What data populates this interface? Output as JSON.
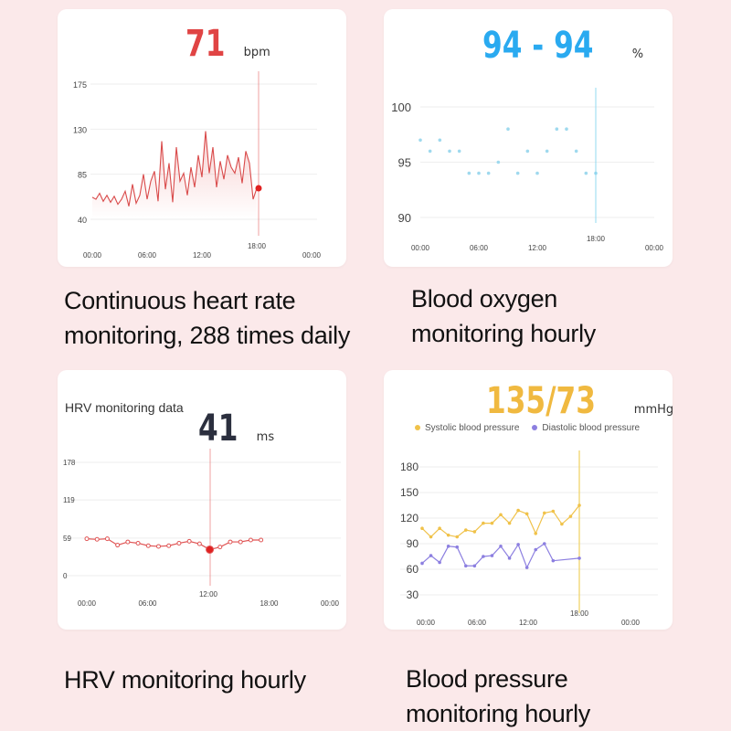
{
  "panels": {
    "heart_rate": {
      "reading_value": "71",
      "reading_unit": "bpm",
      "caption_line1": "Continuous heart rate",
      "caption_line2": "monitoring, 288 times daily",
      "colors": {
        "accent": "#e04444",
        "line": "#d94a4a"
      }
    },
    "blood_oxygen": {
      "reading_value": "94 - 94",
      "reading_unit": "%",
      "caption_line1": "Blood oxygen",
      "caption_line2": "monitoring hourly",
      "colors": {
        "accent": "#2aaaf0",
        "dots": "#9fd9ee"
      }
    },
    "hrv": {
      "chart_title": "HRV monitoring data",
      "reading_value": "41",
      "reading_unit": "ms",
      "caption_line1": "HRV monitoring hourly",
      "colors": {
        "accent": "#2b2f3e",
        "line": "#e05555"
      }
    },
    "blood_pressure": {
      "reading_value": "135/73",
      "reading_unit": "mmHg",
      "legend_systolic": "Systolic blood pressure",
      "legend_diastolic": "Diastolic blood pressure",
      "caption_line1": "Blood pressure",
      "caption_line2": "monitoring hourly",
      "colors": {
        "accent": "#f0b940",
        "systolic": "#f0c24a",
        "diastolic": "#8c7fe0"
      }
    }
  },
  "chart_data": [
    {
      "type": "line",
      "y_ticks": [
        "40",
        "85",
        "130",
        "175"
      ],
      "x_ticks": [
        "00:00",
        "06:00",
        "12:00",
        "18:00",
        "00:00"
      ],
      "ylim": [
        40,
        175
      ],
      "grid": true,
      "cursor_x": "18:00",
      "series": [
        {
          "x": [
            0.0,
            0.4,
            0.8,
            1.2,
            1.6,
            2.0,
            2.4,
            2.8,
            3.2,
            3.6,
            4.0,
            4.4,
            4.8,
            5.2,
            5.6,
            6.0,
            6.4,
            6.8,
            7.2,
            7.6,
            8.0,
            8.4,
            8.8,
            9.2,
            9.6,
            10.0,
            10.4,
            10.8,
            11.2,
            11.6,
            12.0,
            12.4,
            12.8,
            13.2,
            13.6,
            14.0,
            14.4,
            14.8,
            15.2,
            15.6,
            16.0,
            16.4,
            16.8,
            17.2,
            17.6,
            18.0
          ],
          "values": [
            62,
            60,
            66,
            58,
            64,
            57,
            63,
            55,
            60,
            68,
            53,
            75,
            56,
            64,
            85,
            60,
            78,
            88,
            58,
            118,
            70,
            96,
            57,
            112,
            78,
            86,
            64,
            92,
            72,
            104,
            82,
            128,
            86,
            112,
            72,
            98,
            80,
            104,
            92,
            86,
            102,
            76,
            108,
            96,
            60,
            71
          ]
        }
      ]
    },
    {
      "type": "scatter",
      "y_ticks": [
        "90",
        "95",
        "100"
      ],
      "x_ticks": [
        "00:00",
        "06:00",
        "12:00",
        "18:00",
        "00:00"
      ],
      "ylim": [
        90,
        100
      ],
      "grid": true,
      "cursor_x": "18:00",
      "series": [
        {
          "x": [
            0,
            1,
            2,
            3,
            4,
            5,
            6,
            7,
            8,
            9,
            10,
            11,
            12,
            13,
            14,
            15,
            16,
            17,
            18
          ],
          "values": [
            97,
            96,
            97,
            96,
            96,
            94,
            94,
            94,
            95,
            98,
            94,
            96,
            94,
            96,
            98,
            98,
            96,
            94,
            94
          ]
        }
      ]
    },
    {
      "type": "line",
      "y_ticks": [
        "0",
        "59",
        "119",
        "178"
      ],
      "x_ticks": [
        "00:00",
        "06:00",
        "12:00",
        "18:00",
        "00:00"
      ],
      "ylim": [
        0,
        178
      ],
      "grid": true,
      "cursor_x": "12:00",
      "series": [
        {
          "x": [
            0,
            1,
            2,
            3,
            4,
            5,
            6,
            7,
            8,
            9,
            10,
            11,
            12,
            13,
            14,
            15,
            16,
            17
          ],
          "values": [
            58,
            57,
            58,
            48,
            53,
            51,
            47,
            46,
            47,
            51,
            54,
            50,
            41,
            45,
            53,
            53,
            56,
            56
          ]
        }
      ]
    },
    {
      "type": "line",
      "y_ticks": [
        "30",
        "60",
        "90",
        "120",
        "150",
        "180"
      ],
      "x_ticks": [
        "00:00",
        "06:00",
        "12:00",
        "18:00",
        "00:00"
      ],
      "ylim": [
        30,
        180
      ],
      "grid": true,
      "cursor_x": "18:00",
      "series": [
        {
          "name": "Systolic blood pressure",
          "x": [
            0,
            1,
            2,
            3,
            4,
            5,
            6,
            7,
            8,
            9,
            10,
            11,
            12,
            13,
            14,
            15,
            16,
            17,
            18
          ],
          "values": [
            108,
            98,
            108,
            100,
            98,
            106,
            104,
            114,
            114,
            124,
            114,
            129,
            125,
            102,
            126,
            128,
            113,
            122,
            135
          ]
        },
        {
          "name": "Diastolic blood pressure",
          "x": [
            0,
            1,
            2,
            3,
            4,
            5,
            6,
            7,
            8,
            9,
            10,
            11,
            12,
            13,
            14,
            15,
            16,
            17,
            18
          ],
          "values": [
            67,
            76,
            68,
            87,
            86,
            64,
            64,
            75,
            76,
            87,
            73,
            89,
            62,
            83,
            90,
            70,
            null,
            null,
            73
          ]
        }
      ]
    }
  ]
}
